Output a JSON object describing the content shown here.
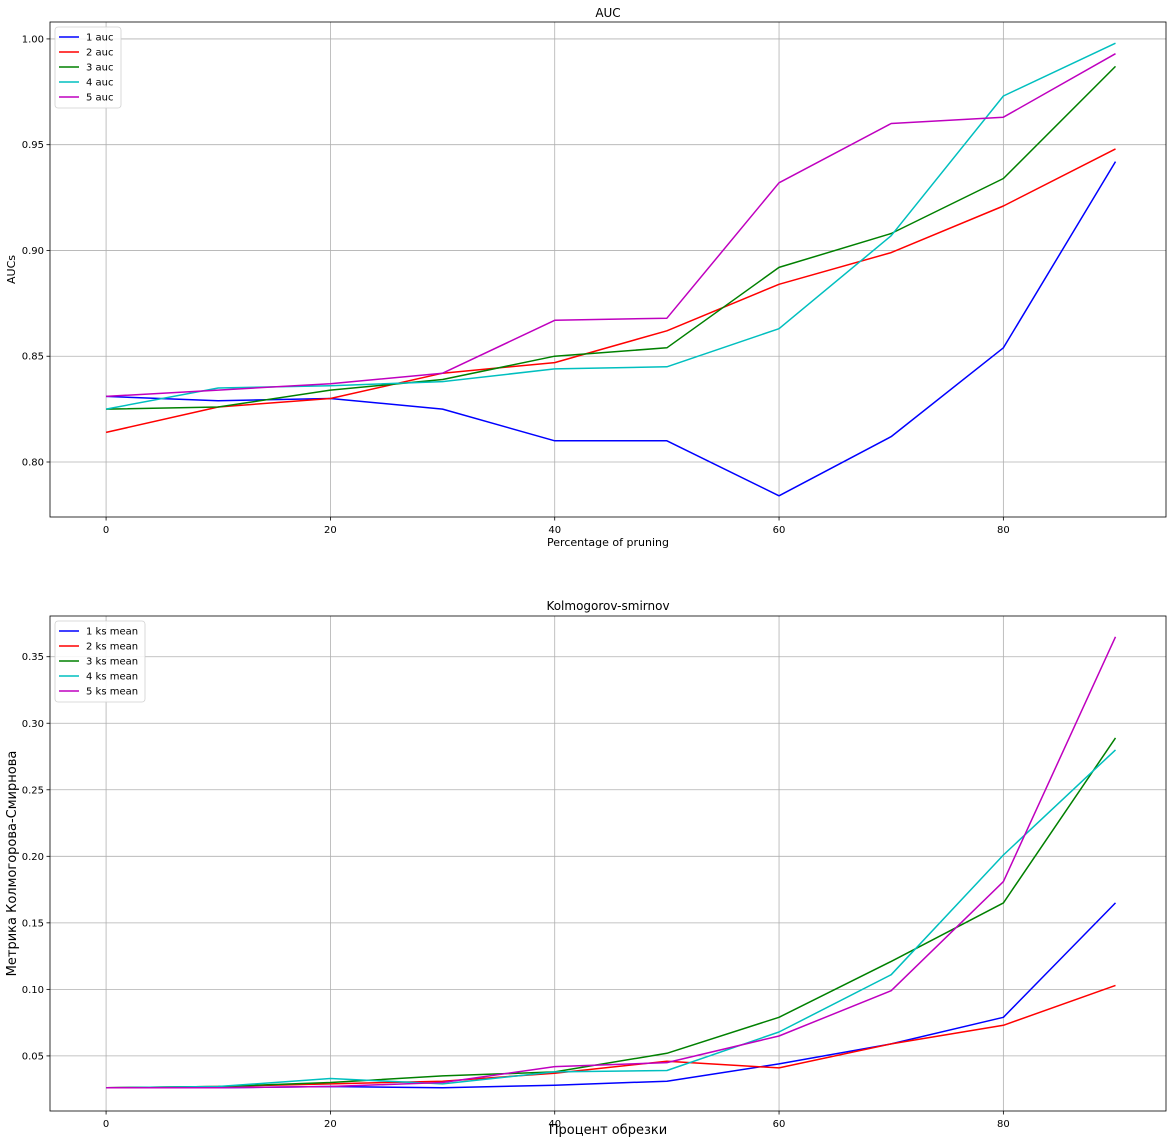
{
  "chart_data": [
    {
      "type": "line",
      "title": "AUC",
      "xlabel": "Percentage of pruning",
      "ylabel": "AUCs",
      "xlim": [
        -5,
        94.5
      ],
      "ylim": [
        0.774,
        1.008
      ],
      "xticks": [
        0,
        20,
        40,
        60,
        80
      ],
      "yticks": [
        0.8,
        0.85,
        0.9,
        0.95,
        1.0
      ],
      "ytick_labels": [
        "0.80",
        "0.85",
        "0.90",
        "0.95",
        "1.00"
      ],
      "grid": true,
      "legend_position": "top-left",
      "x": [
        0,
        10,
        20,
        30,
        40,
        50,
        60,
        70,
        80,
        90
      ],
      "series": [
        {
          "name": "1 auc",
          "color": "#0000ff",
          "values": [
            0.831,
            0.829,
            0.83,
            0.825,
            0.81,
            0.81,
            0.784,
            0.812,
            0.854,
            0.942
          ]
        },
        {
          "name": "2 auc",
          "color": "#ff0000",
          "values": [
            0.814,
            0.826,
            0.83,
            0.842,
            0.847,
            0.862,
            0.884,
            0.899,
            0.921,
            0.948
          ]
        },
        {
          "name": "3 auc",
          "color": "#008000",
          "values": [
            0.825,
            0.826,
            0.834,
            0.839,
            0.85,
            0.854,
            0.892,
            0.908,
            0.934,
            0.987
          ]
        },
        {
          "name": "4 auc",
          "color": "#00bfbf",
          "values": [
            0.825,
            0.835,
            0.836,
            0.838,
            0.844,
            0.845,
            0.863,
            0.907,
            0.973,
            0.998
          ]
        },
        {
          "name": "5 auc",
          "color": "#bf00bf",
          "values": [
            0.831,
            0.834,
            0.837,
            0.842,
            0.867,
            0.868,
            0.932,
            0.96,
            0.963,
            0.993
          ]
        }
      ]
    },
    {
      "type": "line",
      "title": "Kolmogorov-smirnov",
      "xlabel": "Процент обрезки",
      "ylabel": "Метрика Колмогорова-Смирнова",
      "xlim": [
        -5,
        94.5
      ],
      "ylim": [
        0.0086,
        0.3806
      ],
      "xticks": [
        0,
        20,
        40,
        60,
        80
      ],
      "yticks": [
        0.05,
        0.1,
        0.15,
        0.2,
        0.25,
        0.3,
        0.35
      ],
      "ytick_labels": [
        "0.05",
        "0.10",
        "0.15",
        "0.20",
        "0.25",
        "0.30",
        "0.35"
      ],
      "grid": true,
      "legend_position": "top-left",
      "x": [
        0,
        10,
        20,
        30,
        40,
        50,
        60,
        70,
        80,
        90
      ],
      "series": [
        {
          "name": "1 ks mean",
          "color": "#0000ff",
          "values": [
            0.026,
            0.026,
            0.027,
            0.026,
            0.028,
            0.031,
            0.044,
            0.059,
            0.079,
            0.165
          ]
        },
        {
          "name": "2 ks mean",
          "color": "#ff0000",
          "values": [
            0.026,
            0.027,
            0.029,
            0.031,
            0.037,
            0.046,
            0.041,
            0.059,
            0.073,
            0.103
          ]
        },
        {
          "name": "3 ks mean",
          "color": "#008000",
          "values": [
            0.026,
            0.027,
            0.03,
            0.035,
            0.038,
            0.052,
            0.079,
            0.121,
            0.165,
            0.289
          ]
        },
        {
          "name": "4 ks mean",
          "color": "#00bfbf",
          "values": [
            0.026,
            0.027,
            0.033,
            0.029,
            0.038,
            0.039,
            0.068,
            0.111,
            0.201,
            0.28
          ]
        },
        {
          "name": "5 ks mean",
          "color": "#bf00bf",
          "values": [
            0.026,
            0.026,
            0.027,
            0.03,
            0.042,
            0.045,
            0.065,
            0.099,
            0.181,
            0.365
          ]
        }
      ]
    }
  ]
}
